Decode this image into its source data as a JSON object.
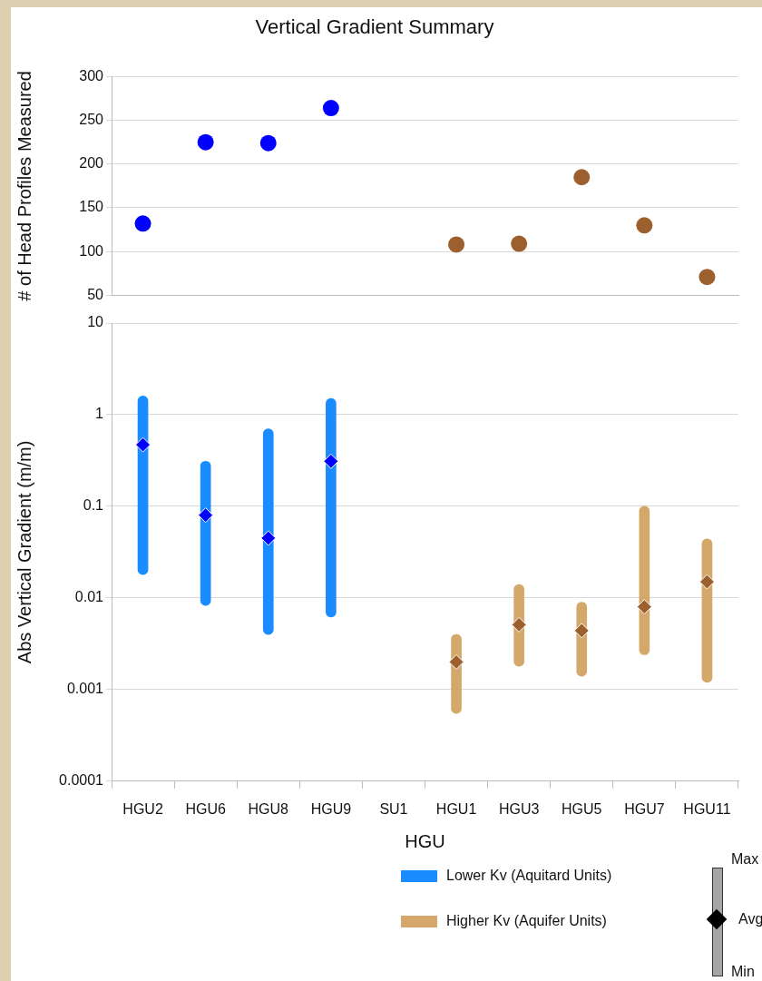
{
  "chart_data": [
    {
      "type": "scatter",
      "title": "Vertical Gradient Summary",
      "ylabel": "# of Head Profiles Measured",
      "categories": [
        "HGU2",
        "HGU6",
        "HGU8",
        "HGU9",
        "SU1",
        "HGU1",
        "HGU3",
        "HGU5",
        "HGU7",
        "HGU11"
      ],
      "values": [
        132,
        225,
        224,
        264,
        null,
        108,
        109,
        185,
        130,
        71
      ],
      "colors": [
        "#0000ff",
        "#0000ff",
        "#0000ff",
        "#0000ff",
        "#0000ff",
        "#9c5f2e",
        "#9c5f2e",
        "#9c5f2e",
        "#9c5f2e",
        "#9c5f2e"
      ],
      "ylim": [
        50,
        300
      ],
      "yticks": [
        50,
        100,
        150,
        200,
        250,
        300
      ],
      "grid": "y",
      "marker": "circle",
      "tick_labels": "y",
      "legend": false
    },
    {
      "type": "bar",
      "xlabel": "HGU",
      "ylabel": "Abs Vertical Gradient (m/m)",
      "categories": [
        "HGU2",
        "HGU6",
        "HGU8",
        "HGU9",
        "SU1",
        "HGU1",
        "HGU3",
        "HGU5",
        "HGU7",
        "HGU11"
      ],
      "log": true,
      "ylim": [
        0.0001,
        10
      ],
      "yticks": [
        0.0001,
        0.001,
        0.01,
        0.1,
        1,
        10
      ],
      "grid": "y",
      "legend": "bottom",
      "marker": "diamond",
      "annotations": [
        "Max",
        "Avg",
        "Min"
      ],
      "series": [
        {
          "name": "Lower Kv (Aquitard Units)",
          "type": "bar",
          "color": "#1a8cff",
          "base": [
            0.018,
            0.0083,
            0.004,
            0.0062,
            null,
            null,
            null,
            null,
            null,
            null
          ],
          "values": [
            1.582,
            0.3017,
            0.696,
            1.4938,
            null,
            null,
            null,
            null,
            null,
            null
          ]
        },
        {
          "name": "Higher Kv (Aquifer Units)",
          "type": "bar",
          "color": "#d4a86a",
          "base": [
            null,
            null,
            null,
            null,
            null,
            0.00055,
            0.0018,
            0.0014,
            0.0024,
            0.0012
          ],
          "values": [
            null,
            null,
            null,
            null,
            null,
            0.00345,
            0.0122,
            0.0076,
            0.0976,
            0.0428
          ]
        },
        {
          "type": "scatter",
          "x": [
            "HGU2",
            "HGU6",
            "HGU8",
            "HGU9",
            "HGU1",
            "HGU3",
            "HGU5",
            "HGU7",
            "HGU11"
          ],
          "values": [
            0.47,
            0.08,
            0.045,
            0.31,
            0.002,
            0.0051,
            0.0044,
            0.008,
            0.015
          ],
          "colors": [
            "#0000ff",
            "#0000ff",
            "#0000ff",
            "#0000ff",
            "#9c5f2e",
            "#9c5f2e",
            "#9c5f2e",
            "#9c5f2e",
            "#9c5f2e"
          ]
        }
      ]
    }
  ]
}
